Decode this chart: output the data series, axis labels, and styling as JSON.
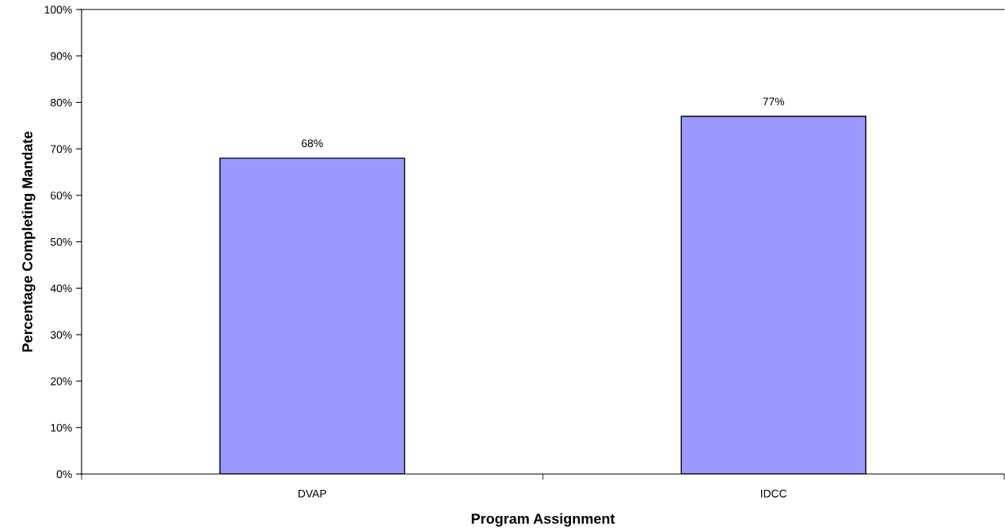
{
  "chart_data": {
    "type": "bar",
    "xlabel": "Program Assignment",
    "ylabel": "Percentage Completing Mandate",
    "categories": [
      "DVAP",
      "IDCC"
    ],
    "values": [
      68,
      77
    ],
    "color": "#9999ff",
    "value_labels": [
      "68%",
      "77%"
    ],
    "ylim": [
      0,
      100
    ],
    "yticks": [
      {
        "value": 0,
        "label": "0%"
      },
      {
        "value": 10,
        "label": "10%"
      },
      {
        "value": 20,
        "label": "20%"
      },
      {
        "value": 30,
        "label": "30%"
      },
      {
        "value": 40,
        "label": "40%"
      },
      {
        "value": 50,
        "label": "50%"
      },
      {
        "value": 60,
        "label": "60%"
      },
      {
        "value": 70,
        "label": "70%"
      },
      {
        "value": 80,
        "label": "80%"
      },
      {
        "value": 90,
        "label": "90%"
      },
      {
        "value": 100,
        "label": "100%"
      }
    ],
    "grid": false,
    "legend": false
  }
}
